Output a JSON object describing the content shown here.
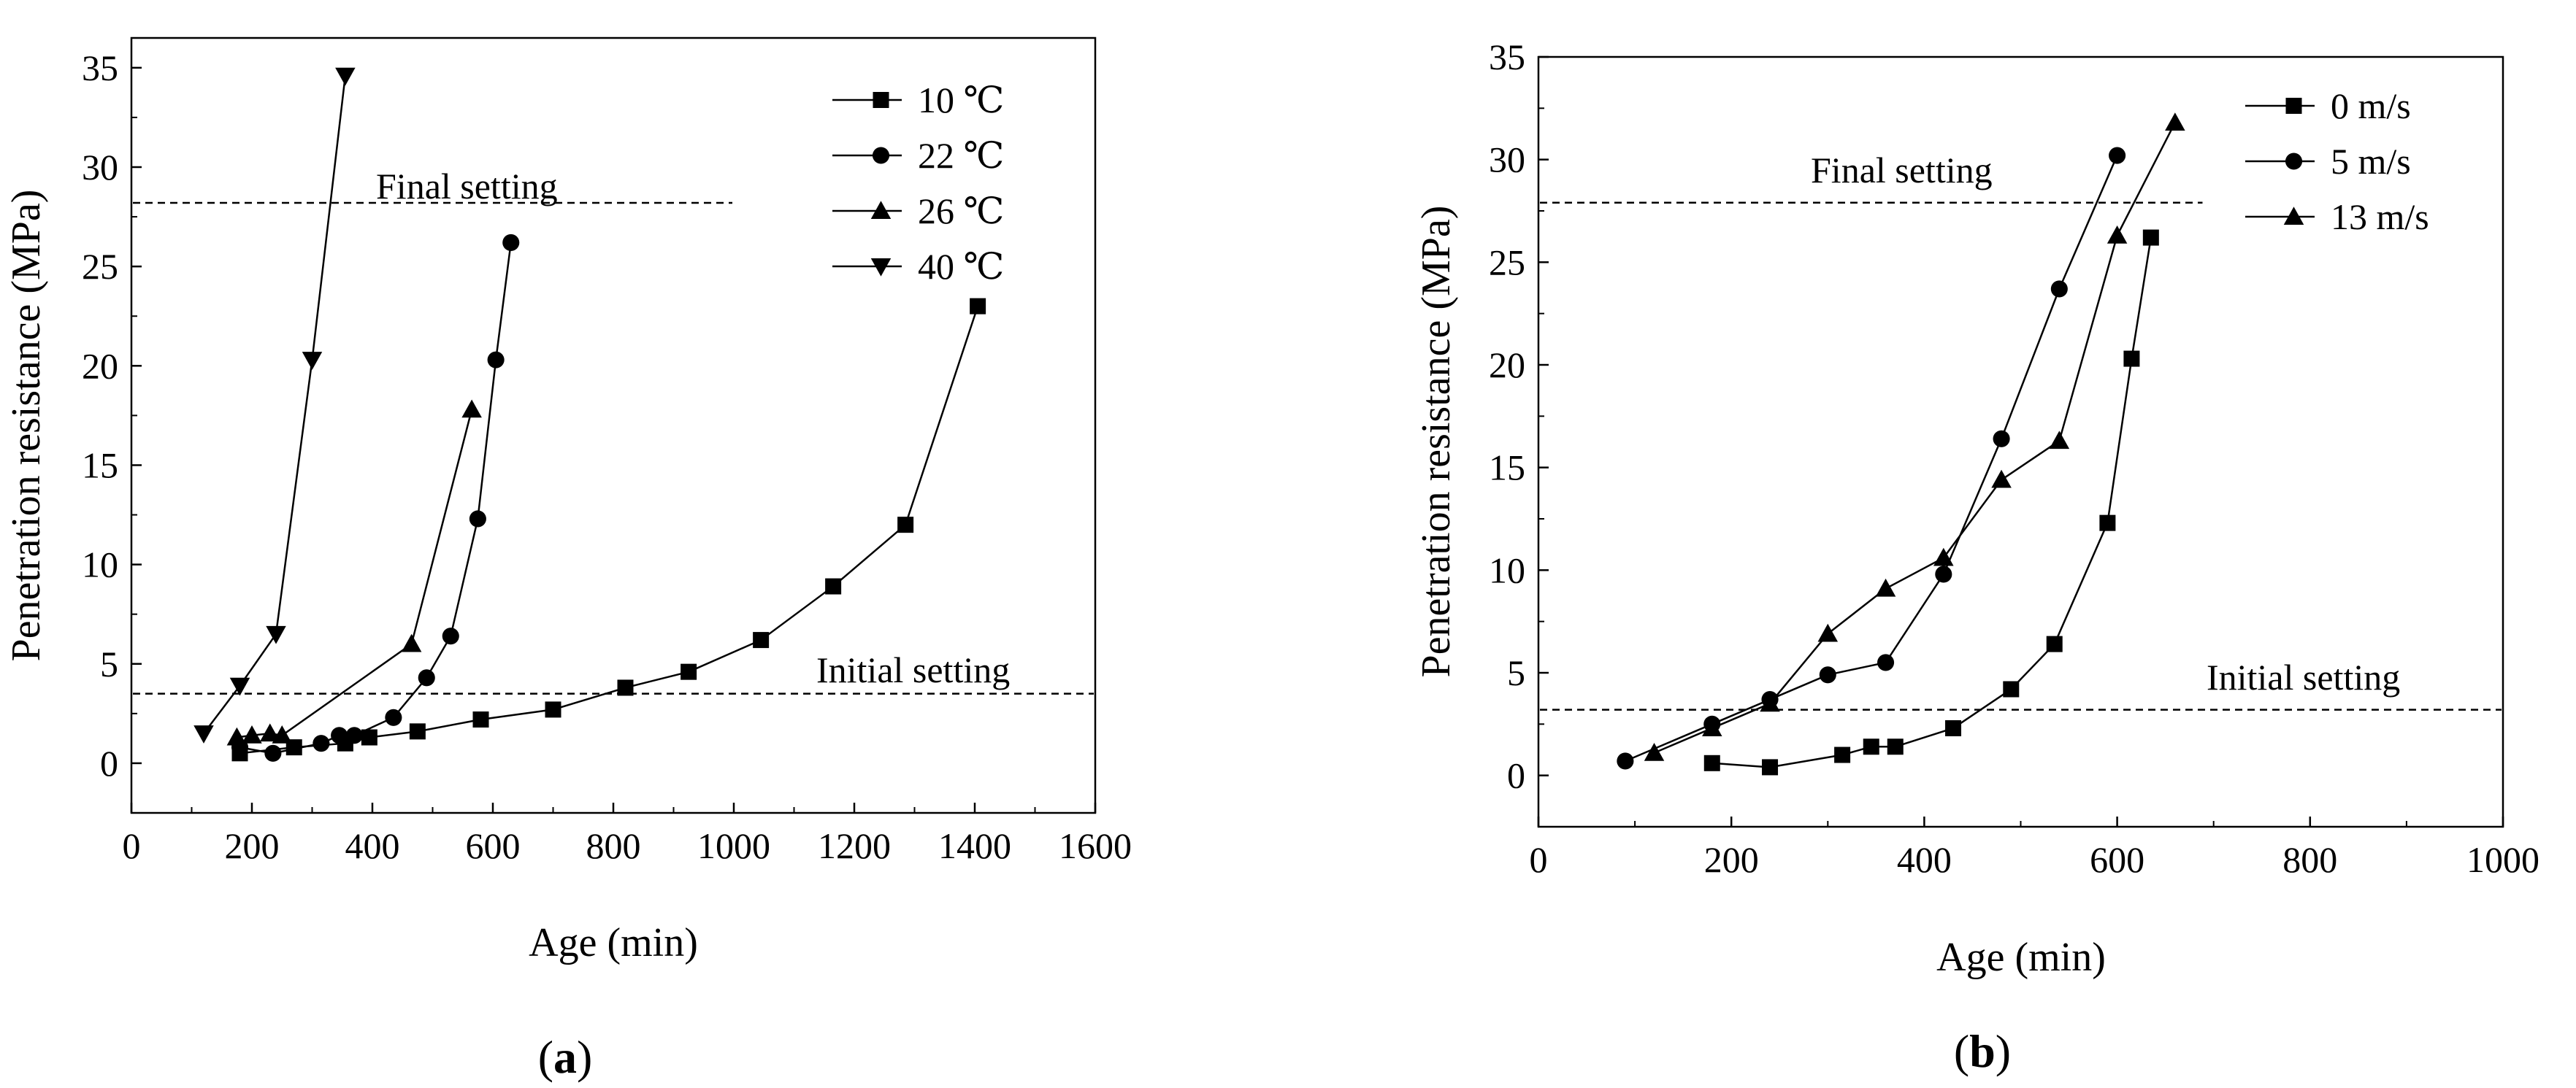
{
  "chart_data": [
    {
      "type": "line",
      "panel_label": "(a)",
      "panel_letter": "a",
      "xlabel": "Age (min)",
      "ylabel": "Penetration resistance (MPa)",
      "xlim": [
        0,
        1600
      ],
      "ylim": [
        -2.5,
        36.5
      ],
      "xticks": [
        0,
        200,
        400,
        600,
        800,
        1000,
        1200,
        1400,
        1600
      ],
      "yticks": [
        0,
        5,
        10,
        15,
        20,
        25,
        30,
        35
      ],
      "legend_position": "top-right",
      "reference_lines": [
        {
          "label": "Final setting",
          "y": 28.2,
          "x_range": [
            0,
            1000
          ]
        },
        {
          "label": "Initial setting",
          "y": 3.5,
          "x_range": [
            0,
            1600
          ]
        }
      ],
      "series": [
        {
          "name": "10 ℃",
          "marker": "square",
          "x": [
            180,
            270,
            355,
            395,
            475,
            580,
            700,
            820,
            925,
            1045,
            1165,
            1285,
            1405
          ],
          "y": [
            0.5,
            0.8,
            1.0,
            1.3,
            1.6,
            2.2,
            2.7,
            3.8,
            4.6,
            6.2,
            8.9,
            12.0,
            23.0
          ]
        },
        {
          "name": "22 ℃",
          "marker": "circle",
          "x": [
            180,
            235,
            315,
            345,
            370,
            435,
            490,
            530,
            575,
            605,
            630
          ],
          "y": [
            0.8,
            0.5,
            1.0,
            1.4,
            1.4,
            2.3,
            4.3,
            6.4,
            12.3,
            20.3,
            26.2
          ]
        },
        {
          "name": "26 ℃",
          "marker": "triangle-up",
          "x": [
            175,
            200,
            230,
            250,
            465,
            565
          ],
          "y": [
            1.3,
            1.4,
            1.5,
            1.4,
            6.0,
            17.8
          ]
        },
        {
          "name": "40 ℃",
          "marker": "triangle-down",
          "x": [
            120,
            180,
            240,
            300,
            355
          ],
          "y": [
            1.5,
            3.9,
            6.5,
            20.3,
            34.6
          ]
        }
      ]
    },
    {
      "type": "line",
      "panel_label": "(b)",
      "panel_letter": "b",
      "xlabel": "Age (min)",
      "ylabel": "Penetration resistance (MPa)",
      "xlim": [
        0,
        1000
      ],
      "ylim": [
        -2.5,
        35
      ],
      "xticks": [
        0,
        200,
        400,
        600,
        800,
        1000
      ],
      "yticks": [
        0,
        5,
        10,
        15,
        20,
        25,
        30,
        35
      ],
      "legend_position": "top-right",
      "reference_lines": [
        {
          "label": "Final setting",
          "y": 27.9,
          "x_range": [
            0,
            690
          ]
        },
        {
          "label": "Initial setting",
          "y": 3.2,
          "x_range": [
            0,
            1000
          ]
        }
      ],
      "series": [
        {
          "name": "0 m/s",
          "marker": "square",
          "x": [
            180,
            240,
            315,
            345,
            370,
            430,
            490,
            535,
            590,
            615,
            635
          ],
          "y": [
            0.6,
            0.4,
            1.0,
            1.4,
            1.4,
            2.3,
            4.2,
            6.4,
            12.3,
            20.3,
            26.2
          ]
        },
        {
          "name": "5 m/s",
          "marker": "circle",
          "x": [
            90,
            180,
            240,
            300,
            360,
            420,
            480,
            540,
            600
          ],
          "y": [
            0.7,
            2.5,
            3.7,
            4.9,
            5.5,
            9.8,
            16.4,
            23.7,
            30.2
          ]
        },
        {
          "name": "13 m/s",
          "marker": "triangle-up",
          "x": [
            120,
            180,
            240,
            300,
            360,
            420,
            480,
            540,
            600,
            660
          ],
          "y": [
            1.1,
            2.3,
            3.5,
            6.9,
            9.1,
            10.6,
            14.4,
            16.3,
            26.3,
            31.8
          ]
        }
      ]
    }
  ]
}
